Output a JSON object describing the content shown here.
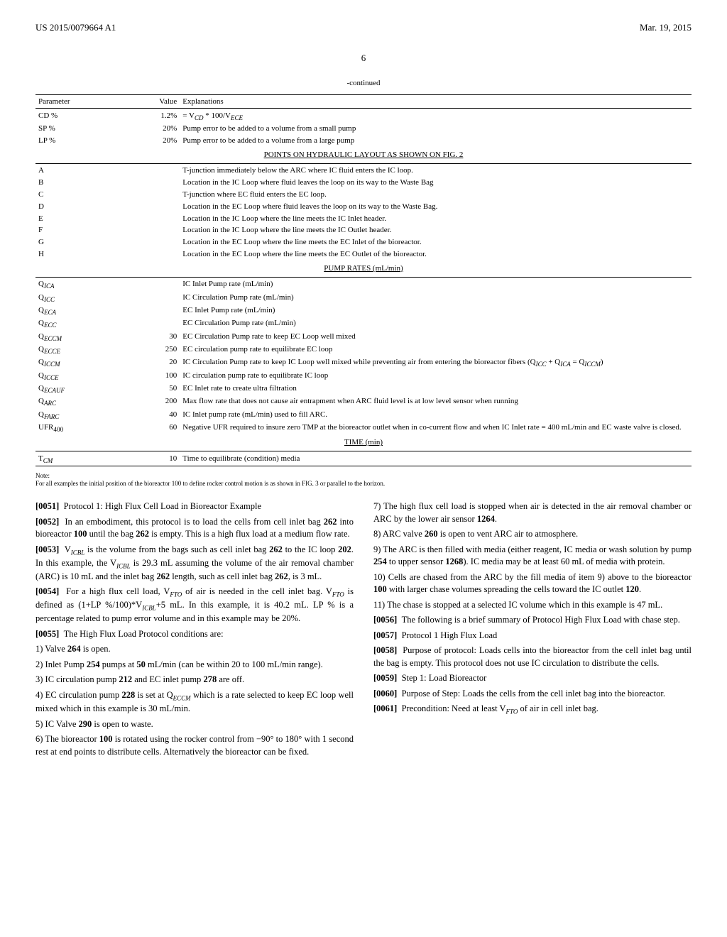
{
  "header": {
    "left": "US 2015/0079664 A1",
    "right": "Mar. 19, 2015"
  },
  "page_number": "6",
  "continued_label": "-continued",
  "table": {
    "headers": [
      "Parameter",
      "Value",
      "Explanations"
    ],
    "section1": [
      {
        "param_html": "CD %",
        "value": "1.2%",
        "expl_html": "= V<span class='sub'>CD</span> * 100/V<span class='sub'>ECE</span>"
      },
      {
        "param_html": "SP %",
        "value": "20%",
        "expl_html": "Pump error to be added to a volume from a small pump"
      },
      {
        "param_html": "LP %",
        "value": "20%",
        "expl_html": "Pump error to be added to a volume from a large pump"
      }
    ],
    "section2_title": "POINTS ON HYDRAULIC LAYOUT AS SHOWN ON FIG. 2",
    "section2": [
      {
        "param_html": "A",
        "value": "",
        "expl_html": "T-junction immediately below the ARC where IC fluid enters the IC loop."
      },
      {
        "param_html": "B",
        "value": "",
        "expl_html": "Location in the IC Loop where fluid leaves the loop on its way to the Waste Bag"
      },
      {
        "param_html": "C",
        "value": "",
        "expl_html": "T-junction where EC fluid enters the EC loop."
      },
      {
        "param_html": "D",
        "value": "",
        "expl_html": "Location in the EC Loop where fluid leaves the loop on its way to the Waste Bag."
      },
      {
        "param_html": "E",
        "value": "",
        "expl_html": "Location in the IC Loop where the line meets the IC Inlet header."
      },
      {
        "param_html": "F",
        "value": "",
        "expl_html": "Location in the IC Loop where the line meets the IC Outlet header."
      },
      {
        "param_html": "G",
        "value": "",
        "expl_html": "Location in the EC Loop where the line meets the EC Inlet of the bioreactor."
      },
      {
        "param_html": "H",
        "value": "",
        "expl_html": "Location in the EC Loop where the line meets the EC Outlet of the bioreactor."
      }
    ],
    "section3_title": "PUMP RATES (mL/min)",
    "section3": [
      {
        "param_html": "Q<span class='sub'>ICA</span>",
        "value": "",
        "expl_html": "IC Inlet Pump rate (mL/min)"
      },
      {
        "param_html": "Q<span class='sub'>ICC</span>",
        "value": "",
        "expl_html": "IC Circulation Pump rate (mL/min)"
      },
      {
        "param_html": "Q<span class='sub'>ECA</span>",
        "value": "",
        "expl_html": "EC Inlet Pump rate (mL/min)"
      },
      {
        "param_html": "Q<span class='sub'>ECC</span>",
        "value": "",
        "expl_html": "EC Circulation Pump rate (mL/min)"
      },
      {
        "param_html": "Q<span class='sub'>ECCM</span>",
        "value": "30",
        "expl_html": "EC Circulation Pump rate to keep EC Loop well mixed"
      },
      {
        "param_html": "Q<span class='sub'>ECCE</span>",
        "value": "250",
        "expl_html": "EC circulation pump rate to equilibrate EC loop"
      },
      {
        "param_html": "Q<span class='sub'>ICCM</span>",
        "value": "20",
        "expl_html": "IC Circulation Pump rate to keep IC Loop well mixed while preventing air from entering the bioreactor fibers (Q<span class='sub'>ICC</span> + Q<span class='sub'>ICA</span> = Q<span class='sub'>ICCM</span>)"
      },
      {
        "param_html": "Q<span class='sub'>ICCE</span>",
        "value": "100",
        "expl_html": "IC circulation pump rate to equilibrate IC loop"
      },
      {
        "param_html": "Q<span class='sub'>ECAUF</span>",
        "value": "50",
        "expl_html": "EC Inlet rate to create ultra filtration"
      },
      {
        "param_html": "Q<span class='sub'>ARC</span>",
        "value": "200",
        "expl_html": "Max flow rate that does not cause air entrapment when ARC fluid level is at low level sensor when running"
      },
      {
        "param_html": "Q<span class='sub'>FARC</span>",
        "value": "40",
        "expl_html": "IC Inlet pump rate (mL/min) used to fill ARC."
      },
      {
        "param_html": "UFR<sub>400</sub>",
        "value": "60",
        "expl_html": "Negative UFR required to insure zero TMP at the bioreactor outlet when in co-current flow and when IC Inlet rate = 400 mL/min and EC waste valve is closed."
      }
    ],
    "section4_title": "TIME (min)",
    "section4": [
      {
        "param_html": "T<span class='sub'>CM</span>",
        "value": "10",
        "expl_html": "Time to equilibrate (condition) media"
      }
    ]
  },
  "note": {
    "label": "Note:",
    "text_html": "For all examples the initial position of the bioreactor 100 to define rocker control motion is as shown in FIG. 3 or parallel to the horizon."
  },
  "left_col": [
    {
      "num": "[0051]",
      "text_html": "Protocol 1: High Flux Cell Load in Bioreactor Example"
    },
    {
      "num": "[0052]",
      "text_html": "In an embodiment, this protocol is to load the cells from cell inlet bag <b>262</b> into bioreactor <b>100</b> until the bag <b>262</b> is empty. This is a high flux load at a medium flow rate."
    },
    {
      "num": "[0053]",
      "text_html": "V<span class='sub'>ICBL</span> is the volume from the bags such as cell inlet bag <b>262</b> to the IC loop <b>202</b>. In this example, the V<span class='sub'>ICBL</span> is 29.3 mL assuming the volume of the air removal chamber (ARC) is 10 mL and the inlet bag <b>262</b> length, such as cell inlet bag <b>262</b>, is 3 mL."
    },
    {
      "num": "[0054]",
      "text_html": "For a high flux cell load, V<span class='sub'>FTO</span> of air is needed in the cell inlet bag. V<span class='sub'>FTO</span> is defined as (1+LP %/100)*V<span class='sub'>ICBL</span>+5 mL. In this example, it is 40.2 mL. LP % is a percentage related to pump error volume and in this example may be 20%."
    },
    {
      "num": "[0055]",
      "text_html": "The High Flux Load Protocol conditions are:"
    },
    {
      "num": "",
      "text_html": "1) Valve <b>264</b> is open."
    },
    {
      "num": "",
      "text_html": "2) Inlet Pump <b>254</b> pumps at <b>50</b> mL/min (can be within 20 to 100 mL/min range)."
    },
    {
      "num": "",
      "text_html": "3) IC circulation pump <b>212</b> and EC inlet pump <b>278</b> are off."
    },
    {
      "num": "",
      "text_html": "4) EC circulation pump <b>228</b> is set at Q<span class='sub'>ECCM</span> which is a rate selected to keep EC loop well mixed which in this example is 30 mL/min."
    },
    {
      "num": "",
      "text_html": "5) IC Valve <b>290</b> is open to waste."
    },
    {
      "num": "",
      "text_html": "6) The bioreactor <b>100</b> is rotated using the rocker control from −90° to 180° with 1 second rest at end points to distribute cells. Alternatively the bioreactor can be fixed."
    }
  ],
  "right_col": [
    {
      "num": "",
      "text_html": "7) The high flux cell load is stopped when air is detected in the air removal chamber or ARC by the lower air sensor <b>1264</b>."
    },
    {
      "num": "",
      "text_html": "8) ARC valve <b>260</b> is open to vent ARC air to atmosphere."
    },
    {
      "num": "",
      "text_html": "9) The ARC is then filled with media (either reagent, IC media or wash solution by pump <b>254</b> to upper sensor <b>1268</b>). IC media may be at least 60 mL of media with protein."
    },
    {
      "num": "",
      "text_html": "10) Cells are chased from the ARC by the fill media of item 9) above to the bioreactor <b>100</b> with larger chase volumes spreading the cells toward the IC outlet <b>120</b>."
    },
    {
      "num": "",
      "text_html": "11) The chase is stopped at a selected IC volume which in this example is 47 mL."
    },
    {
      "num": "[0056]",
      "text_html": "The following is a brief summary of Protocol High Flux Load with chase step."
    },
    {
      "num": "[0057]",
      "text_html": "Protocol 1 High Flux Load"
    },
    {
      "num": "[0058]",
      "text_html": "Purpose of protocol: Loads cells into the bioreactor from the cell inlet bag until the bag is empty. This protocol does not use IC circulation to distribute the cells."
    },
    {
      "num": "[0059]",
      "text_html": "Step 1: Load Bioreactor"
    },
    {
      "num": "[0060]",
      "text_html": "Purpose of Step: Loads the cells from the cell inlet bag into the bioreactor."
    },
    {
      "num": "[0061]",
      "text_html": "Precondition: Need at least V<span class='sub'>FTO</span> of air in cell inlet bag."
    }
  ]
}
